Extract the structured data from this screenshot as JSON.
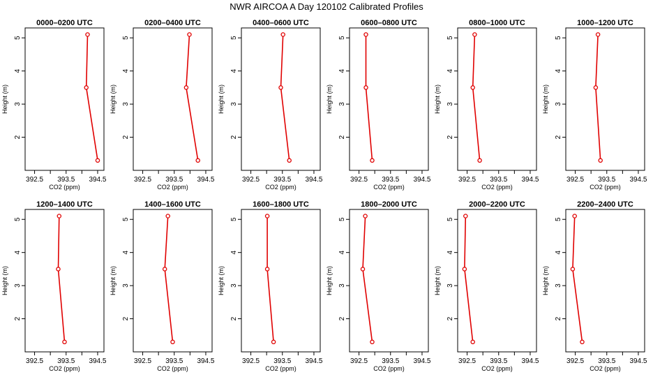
{
  "figure": {
    "title": "NWR AIRCOA A  Day 120102  Calibrated Profiles"
  },
  "chart_data": [
    {
      "type": "line",
      "title": "0000–0200 UTC",
      "xlabel": "CO2 (ppm)",
      "ylabel": "Height (m)",
      "xlim": [
        392.2,
        394.7
      ],
      "ylim": [
        1.0,
        5.3
      ],
      "xticks": [
        392.5,
        393.5,
        394.5
      ],
      "xminor": [
        393.0,
        394.0
      ],
      "yticks": [
        2,
        3,
        4,
        5
      ],
      "grid": false,
      "series": [
        {
          "x": [
            394.5,
            394.14,
            394.18
          ],
          "y": [
            1.3,
            3.5,
            5.1
          ]
        }
      ]
    },
    {
      "type": "line",
      "title": "0200–0400 UTC",
      "xlabel": "CO2 (ppm)",
      "ylabel": "Height (m)",
      "xlim": [
        392.2,
        394.7
      ],
      "ylim": [
        1.0,
        5.3
      ],
      "xticks": [
        392.5,
        393.5,
        394.5
      ],
      "xminor": [
        393.0,
        394.0
      ],
      "yticks": [
        2,
        3,
        4,
        5
      ],
      "grid": false,
      "series": [
        {
          "x": [
            394.25,
            393.88,
            393.98
          ],
          "y": [
            1.3,
            3.5,
            5.1
          ]
        }
      ]
    },
    {
      "type": "line",
      "title": "0400–0600 UTC",
      "xlabel": "CO2 (ppm)",
      "ylabel": "Height (m)",
      "xlim": [
        392.2,
        394.7
      ],
      "ylim": [
        1.0,
        5.3
      ],
      "xticks": [
        392.5,
        393.5,
        394.5
      ],
      "xminor": [
        393.0,
        394.0
      ],
      "yticks": [
        2,
        3,
        4,
        5
      ],
      "grid": false,
      "series": [
        {
          "x": [
            393.72,
            393.45,
            393.52
          ],
          "y": [
            1.3,
            3.5,
            5.1
          ]
        }
      ]
    },
    {
      "type": "line",
      "title": "0600–0800 UTC",
      "xlabel": "CO2 (ppm)",
      "ylabel": "Height (m)",
      "xlim": [
        392.2,
        394.7
      ],
      "ylim": [
        1.0,
        5.3
      ],
      "xticks": [
        392.5,
        393.5,
        394.5
      ],
      "xminor": [
        393.0,
        394.0
      ],
      "yticks": [
        2,
        3,
        4,
        5
      ],
      "grid": false,
      "series": [
        {
          "x": [
            392.92,
            392.72,
            392.72
          ],
          "y": [
            1.3,
            3.5,
            5.1
          ]
        }
      ]
    },
    {
      "type": "line",
      "title": "0800–1000 UTC",
      "xlabel": "CO2 (ppm)",
      "ylabel": "Height (m)",
      "xlim": [
        392.2,
        394.7
      ],
      "ylim": [
        1.0,
        5.3
      ],
      "xticks": [
        392.5,
        393.5,
        394.5
      ],
      "xminor": [
        393.0,
        394.0
      ],
      "yticks": [
        2,
        3,
        4,
        5
      ],
      "grid": false,
      "series": [
        {
          "x": [
            392.9,
            392.68,
            392.74
          ],
          "y": [
            1.3,
            3.5,
            5.1
          ]
        }
      ]
    },
    {
      "type": "line",
      "title": "1000–1200 UTC",
      "xlabel": "CO2 (ppm)",
      "ylabel": "Height (m)",
      "xlim": [
        392.2,
        394.7
      ],
      "ylim": [
        1.0,
        5.3
      ],
      "xticks": [
        392.5,
        393.5,
        394.5
      ],
      "xminor": [
        393.0,
        394.0
      ],
      "yticks": [
        2,
        3,
        4,
        5
      ],
      "grid": false,
      "series": [
        {
          "x": [
            393.3,
            393.15,
            393.22
          ],
          "y": [
            1.3,
            3.5,
            5.1
          ]
        }
      ]
    },
    {
      "type": "line",
      "title": "1200–1400 UTC",
      "xlabel": "CO2 (ppm)",
      "ylabel": "Height (m)",
      "xlim": [
        392.2,
        394.7
      ],
      "ylim": [
        1.0,
        5.3
      ],
      "xticks": [
        392.5,
        393.5,
        394.5
      ],
      "xminor": [
        393.0,
        394.0
      ],
      "yticks": [
        2,
        3,
        4,
        5
      ],
      "grid": false,
      "series": [
        {
          "x": [
            393.45,
            393.25,
            393.28
          ],
          "y": [
            1.3,
            3.5,
            5.1
          ]
        }
      ]
    },
    {
      "type": "line",
      "title": "1400–1600 UTC",
      "xlabel": "CO2 (ppm)",
      "ylabel": "Height (m)",
      "xlim": [
        392.2,
        394.7
      ],
      "ylim": [
        1.0,
        5.3
      ],
      "xticks": [
        392.5,
        393.5,
        394.5
      ],
      "xminor": [
        393.0,
        394.0
      ],
      "yticks": [
        2,
        3,
        4,
        5
      ],
      "grid": false,
      "series": [
        {
          "x": [
            393.45,
            393.2,
            393.3
          ],
          "y": [
            1.3,
            3.5,
            5.1
          ]
        }
      ]
    },
    {
      "type": "line",
      "title": "1600–1800 UTC",
      "xlabel": "CO2 (ppm)",
      "ylabel": "Height (m)",
      "xlim": [
        392.2,
        394.7
      ],
      "ylim": [
        1.0,
        5.3
      ],
      "xticks": [
        392.5,
        393.5,
        394.5
      ],
      "xminor": [
        393.0,
        394.0
      ],
      "yticks": [
        2,
        3,
        4,
        5
      ],
      "grid": false,
      "series": [
        {
          "x": [
            393.22,
            393.02,
            393.02
          ],
          "y": [
            1.3,
            3.5,
            5.1
          ]
        }
      ]
    },
    {
      "type": "line",
      "title": "1800–2000 UTC",
      "xlabel": "CO2 (ppm)",
      "ylabel": "Height (m)",
      "xlim": [
        392.2,
        394.7
      ],
      "ylim": [
        1.0,
        5.3
      ],
      "xticks": [
        392.5,
        393.5,
        394.5
      ],
      "xminor": [
        393.0,
        394.0
      ],
      "yticks": [
        2,
        3,
        4,
        5
      ],
      "grid": false,
      "series": [
        {
          "x": [
            392.92,
            392.62,
            392.7
          ],
          "y": [
            1.3,
            3.5,
            5.1
          ]
        }
      ]
    },
    {
      "type": "line",
      "title": "2000–2200 UTC",
      "xlabel": "CO2 (ppm)",
      "ylabel": "Height (m)",
      "xlim": [
        392.2,
        394.7
      ],
      "ylim": [
        1.0,
        5.3
      ],
      "xticks": [
        392.5,
        393.5,
        394.5
      ],
      "xminor": [
        393.0,
        394.0
      ],
      "yticks": [
        2,
        3,
        4,
        5
      ],
      "grid": false,
      "series": [
        {
          "x": [
            392.68,
            392.42,
            392.45
          ],
          "y": [
            1.3,
            3.5,
            5.1
          ]
        }
      ]
    },
    {
      "type": "line",
      "title": "2200–2400 UTC",
      "xlabel": "CO2 (ppm)",
      "ylabel": "Height (m)",
      "xlim": [
        392.2,
        394.7
      ],
      "ylim": [
        1.0,
        5.3
      ],
      "xticks": [
        392.5,
        393.5,
        394.5
      ],
      "xminor": [
        393.0,
        394.0
      ],
      "yticks": [
        2,
        3,
        4,
        5
      ],
      "grid": false,
      "series": [
        {
          "x": [
            392.72,
            392.42,
            392.48
          ],
          "y": [
            1.3,
            3.5,
            5.1
          ]
        }
      ]
    }
  ],
  "style": {
    "series_color": "#e00000",
    "frame_color": "#000000",
    "background": "#ffffff"
  }
}
